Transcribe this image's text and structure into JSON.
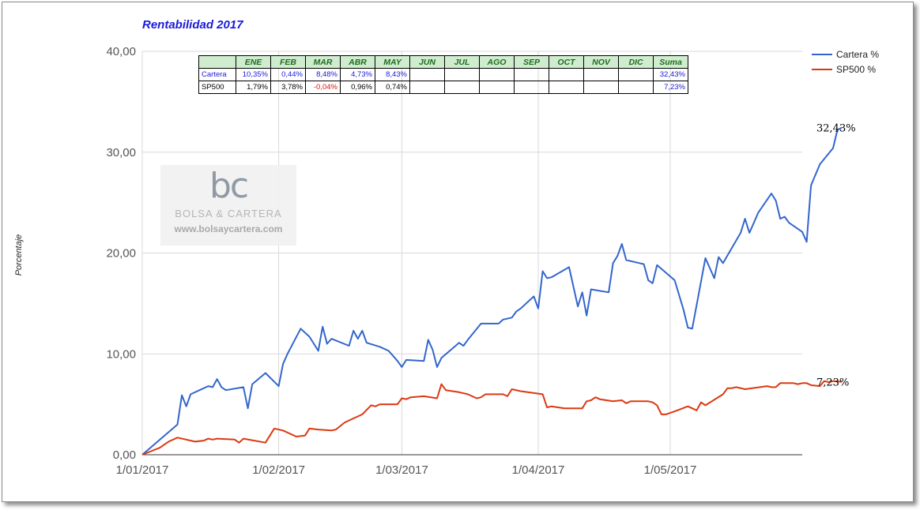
{
  "chart_data": {
    "type": "line",
    "title": "Rentabilidad 2017",
    "ylabel": "Porcentaje",
    "xlabel": "",
    "ylim": [
      0,
      40
    ],
    "y_ticks": [
      "0,00",
      "10,00",
      "20,00",
      "30,00",
      "40,00"
    ],
    "x_ticks": [
      "1/01/2017",
      "1/02/2017",
      "1/03/2017",
      "1/04/2017",
      "1/05/2017"
    ],
    "x_range": [
      "2017-01-01",
      "2017-05-31"
    ],
    "grid": true,
    "legend_position": "top-right",
    "series": [
      {
        "name": "Cartera %",
        "color": "#3366cc",
        "end_label": "32,43%",
        "points": [
          [
            "2017-01-01",
            0.0
          ],
          [
            "2017-01-09",
            3.0
          ],
          [
            "2017-01-10",
            5.9
          ],
          [
            "2017-01-11",
            4.8
          ],
          [
            "2017-01-12",
            6.0
          ],
          [
            "2017-01-16",
            6.8
          ],
          [
            "2017-01-17",
            6.7
          ],
          [
            "2017-01-18",
            7.5
          ],
          [
            "2017-01-19",
            6.7
          ],
          [
            "2017-01-20",
            6.4
          ],
          [
            "2017-01-24",
            6.7
          ],
          [
            "2017-01-25",
            4.6
          ],
          [
            "2017-01-26",
            7.0
          ],
          [
            "2017-01-29",
            8.1
          ],
          [
            "2017-02-01",
            6.8
          ],
          [
            "2017-02-02",
            9.0
          ],
          [
            "2017-02-03",
            10.0
          ],
          [
            "2017-02-06",
            12.5
          ],
          [
            "2017-02-08",
            11.7
          ],
          [
            "2017-02-10",
            10.3
          ],
          [
            "2017-02-11",
            12.7
          ],
          [
            "2017-02-12",
            11.0
          ],
          [
            "2017-02-13",
            11.5
          ],
          [
            "2017-02-17",
            10.8
          ],
          [
            "2017-02-18",
            12.3
          ],
          [
            "2017-02-19",
            11.5
          ],
          [
            "2017-02-20",
            12.3
          ],
          [
            "2017-02-21",
            11.1
          ],
          [
            "2017-02-24",
            10.7
          ],
          [
            "2017-02-26",
            10.3
          ],
          [
            "2017-02-28",
            9.3
          ],
          [
            "2017-03-01",
            8.7
          ],
          [
            "2017-03-02",
            9.4
          ],
          [
            "2017-03-06",
            9.3
          ],
          [
            "2017-03-07",
            11.4
          ],
          [
            "2017-03-08",
            10.4
          ],
          [
            "2017-03-09",
            8.7
          ],
          [
            "2017-03-10",
            9.6
          ],
          [
            "2017-03-14",
            11.1
          ],
          [
            "2017-03-15",
            10.8
          ],
          [
            "2017-03-16",
            11.4
          ],
          [
            "2017-03-19",
            13.0
          ],
          [
            "2017-03-23",
            13.0
          ],
          [
            "2017-03-24",
            13.4
          ],
          [
            "2017-03-26",
            13.6
          ],
          [
            "2017-03-27",
            14.2
          ],
          [
            "2017-03-28",
            14.5
          ],
          [
            "2017-03-31",
            15.7
          ],
          [
            "2017-04-01",
            14.5
          ],
          [
            "2017-04-02",
            18.2
          ],
          [
            "2017-04-03",
            17.5
          ],
          [
            "2017-04-04",
            17.6
          ],
          [
            "2017-04-08",
            18.6
          ],
          [
            "2017-04-10",
            14.7
          ],
          [
            "2017-04-11",
            16.1
          ],
          [
            "2017-04-12",
            13.8
          ],
          [
            "2017-04-13",
            16.4
          ],
          [
            "2017-04-17",
            16.1
          ],
          [
            "2017-04-18",
            19.0
          ],
          [
            "2017-04-19",
            19.7
          ],
          [
            "2017-04-20",
            20.9
          ],
          [
            "2017-04-21",
            19.3
          ],
          [
            "2017-04-24",
            19.0
          ],
          [
            "2017-04-25",
            18.9
          ],
          [
            "2017-04-26",
            17.3
          ],
          [
            "2017-04-27",
            17.0
          ],
          [
            "2017-04-28",
            18.8
          ],
          [
            "2017-05-02",
            17.3
          ],
          [
            "2017-05-04",
            14.4
          ],
          [
            "2017-05-05",
            12.6
          ],
          [
            "2017-05-06",
            12.5
          ],
          [
            "2017-05-09",
            19.5
          ],
          [
            "2017-05-11",
            17.5
          ],
          [
            "2017-05-12",
            19.6
          ],
          [
            "2017-05-13",
            19.0
          ],
          [
            "2017-05-17",
            22.0
          ],
          [
            "2017-05-18",
            23.4
          ],
          [
            "2017-05-19",
            22.0
          ],
          [
            "2017-05-20",
            23.0
          ],
          [
            "2017-05-21",
            24.0
          ],
          [
            "2017-05-24",
            25.9
          ],
          [
            "2017-05-25",
            25.2
          ],
          [
            "2017-05-26",
            23.4
          ],
          [
            "2017-05-27",
            23.6
          ],
          [
            "2017-05-28",
            23.0
          ],
          [
            "2017-05-31",
            22.1
          ],
          [
            "2017-06-01",
            21.1
          ],
          [
            "2017-06-02",
            26.7
          ],
          [
            "2017-06-04",
            28.8
          ],
          [
            "2017-06-07",
            30.4
          ],
          [
            "2017-06-08",
            32.2
          ],
          [
            "2017-06-09",
            32.43
          ]
        ]
      },
      {
        "name": "SP500 %",
        "color": "#dc3912",
        "end_label": "7,23%",
        "points": [
          [
            "2017-01-01",
            0.0
          ],
          [
            "2017-01-05",
            0.7
          ],
          [
            "2017-01-06",
            1.0
          ],
          [
            "2017-01-07",
            1.3
          ],
          [
            "2017-01-09",
            1.7
          ],
          [
            "2017-01-13",
            1.3
          ],
          [
            "2017-01-15",
            1.4
          ],
          [
            "2017-01-16",
            1.6
          ],
          [
            "2017-01-17",
            1.5
          ],
          [
            "2017-01-18",
            1.6
          ],
          [
            "2017-01-22",
            1.5
          ],
          [
            "2017-01-23",
            1.2
          ],
          [
            "2017-01-24",
            1.6
          ],
          [
            "2017-01-29",
            1.2
          ],
          [
            "2017-01-31",
            2.6
          ],
          [
            "2017-02-02",
            2.4
          ],
          [
            "2017-02-05",
            1.8
          ],
          [
            "2017-02-07",
            1.9
          ],
          [
            "2017-02-08",
            2.6
          ],
          [
            "2017-02-10",
            2.5
          ],
          [
            "2017-02-13",
            2.4
          ],
          [
            "2017-02-14",
            2.5
          ],
          [
            "2017-02-16",
            3.2
          ],
          [
            "2017-02-18",
            3.6
          ],
          [
            "2017-02-20",
            4.0
          ],
          [
            "2017-02-22",
            4.9
          ],
          [
            "2017-02-23",
            4.8
          ],
          [
            "2017-02-24",
            5.0
          ],
          [
            "2017-02-28",
            5.0
          ],
          [
            "2017-03-01",
            5.6
          ],
          [
            "2017-03-02",
            5.5
          ],
          [
            "2017-03-03",
            5.7
          ],
          [
            "2017-03-06",
            5.8
          ],
          [
            "2017-03-09",
            5.6
          ],
          [
            "2017-03-10",
            7.0
          ],
          [
            "2017-03-11",
            6.4
          ],
          [
            "2017-03-14",
            6.2
          ],
          [
            "2017-03-16",
            6.0
          ],
          [
            "2017-03-18",
            5.6
          ],
          [
            "2017-03-19",
            5.7
          ],
          [
            "2017-03-20",
            6.0
          ],
          [
            "2017-03-24",
            6.0
          ],
          [
            "2017-03-25",
            5.8
          ],
          [
            "2017-03-26",
            6.5
          ],
          [
            "2017-03-28",
            6.3
          ],
          [
            "2017-04-02",
            6.0
          ],
          [
            "2017-04-03",
            4.7
          ],
          [
            "2017-04-04",
            4.8
          ],
          [
            "2017-04-07",
            4.6
          ],
          [
            "2017-04-11",
            4.6
          ],
          [
            "2017-04-12",
            5.3
          ],
          [
            "2017-04-13",
            5.4
          ],
          [
            "2017-04-14",
            5.7
          ],
          [
            "2017-04-15",
            5.5
          ],
          [
            "2017-04-18",
            5.3
          ],
          [
            "2017-04-20",
            5.4
          ],
          [
            "2017-04-21",
            5.1
          ],
          [
            "2017-04-22",
            5.3
          ],
          [
            "2017-04-26",
            5.3
          ],
          [
            "2017-04-27",
            5.2
          ],
          [
            "2017-04-28",
            4.9
          ],
          [
            "2017-04-29",
            4.0
          ],
          [
            "2017-04-30",
            4.0
          ],
          [
            "2017-05-02",
            4.3
          ],
          [
            "2017-05-05",
            4.8
          ],
          [
            "2017-05-07",
            4.4
          ],
          [
            "2017-05-08",
            5.2
          ],
          [
            "2017-05-09",
            4.9
          ],
          [
            "2017-05-13",
            6.0
          ],
          [
            "2017-05-14",
            6.6
          ],
          [
            "2017-05-15",
            6.6
          ],
          [
            "2017-05-16",
            6.7
          ],
          [
            "2017-05-18",
            6.5
          ],
          [
            "2017-05-23",
            6.8
          ],
          [
            "2017-05-24",
            6.7
          ],
          [
            "2017-05-25",
            6.7
          ],
          [
            "2017-05-26",
            7.1
          ],
          [
            "2017-05-29",
            7.1
          ],
          [
            "2017-05-30",
            7.0
          ],
          [
            "2017-05-31",
            7.1
          ],
          [
            "2017-06-01",
            7.1
          ],
          [
            "2017-06-02",
            6.9
          ],
          [
            "2017-06-04",
            6.8
          ],
          [
            "2017-06-05",
            7.3
          ],
          [
            "2017-06-06",
            7.2
          ],
          [
            "2017-06-07",
            7.3
          ],
          [
            "2017-06-09",
            7.23
          ]
        ]
      }
    ],
    "summary_table": {
      "header": [
        "",
        "ENE",
        "FEB",
        "MAR",
        "ABR",
        "MAY",
        "JUN",
        "JUL",
        "AGO",
        "SEP",
        "OCT",
        "NOV",
        "DIC",
        "Suma"
      ],
      "rows": [
        {
          "name": "Cartera",
          "values": [
            "10,35%",
            "0,44%",
            "8,48%",
            "4,73%",
            "8,43%",
            "",
            "",
            "",
            "",
            "",
            "",
            "",
            "32,43%"
          ]
        },
        {
          "name": "SP500",
          "values": [
            "1,79%",
            "3,78%",
            "-0,04%",
            "0,96%",
            "0,74%",
            "",
            "",
            "",
            "",
            "",
            "",
            "",
            "7,23%"
          ]
        }
      ]
    }
  },
  "watermark": {
    "logo": "bc",
    "name": "BOLSA & CARTERA",
    "url": "www.bolsaycartera.com"
  }
}
